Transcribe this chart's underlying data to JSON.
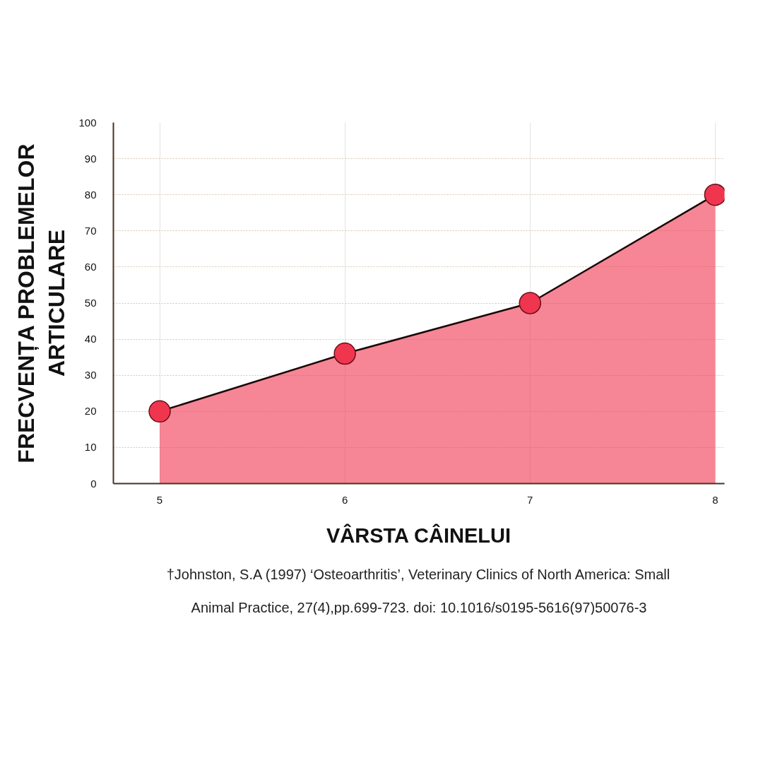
{
  "chart_data": {
    "type": "area",
    "x": [
      5,
      6,
      7,
      8
    ],
    "xlim": [
      4.75,
      8.05
    ],
    "xticks": [
      5,
      6,
      7,
      8
    ],
    "ylim": [
      0,
      100
    ],
    "yticks": [
      0,
      10,
      20,
      30,
      40,
      50,
      60,
      70,
      80,
      90,
      100
    ],
    "series": [
      {
        "color": "#f0364f",
        "values": [
          20,
          36,
          50,
          80
        ]
      }
    ],
    "marker": "circle",
    "grid": true,
    "xlabel": "VÂRSTA CÂINELUI",
    "ylabel": "FRECVENȚA PROBLEMELOR ARTICULARE",
    "annotations": [
      "†Johnston, S.A (1997) ‘Osteoarthritis’, Veterinary Clinics of North America: Small Animal Practice, 27(4),pp.699-723. doi: 10.1016/s0195-5616(97)50076-3"
    ]
  }
}
